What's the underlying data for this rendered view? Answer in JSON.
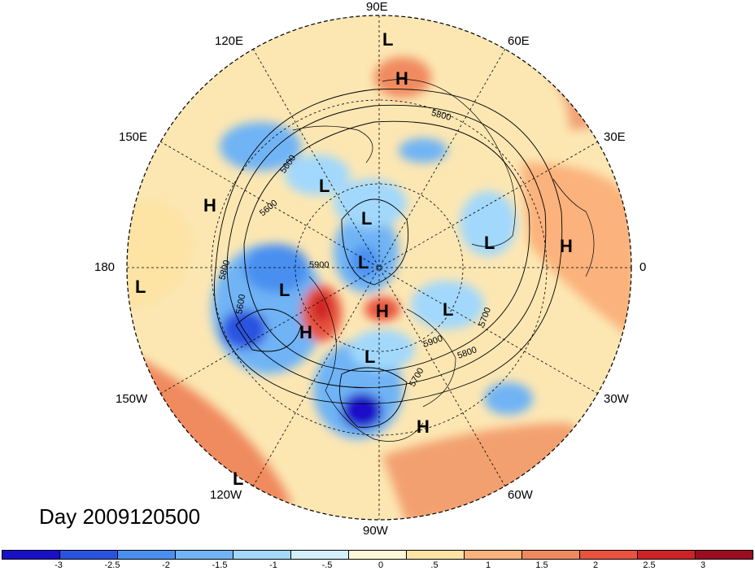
{
  "title": "Day 2009120500",
  "longitude_labels": {
    "lon_90e": "90E",
    "lon_60e": "60E",
    "lon_30e": "30E",
    "lon_0": "0",
    "lon_30w": "30W",
    "lon_60w": "60W",
    "lon_90w": "90W",
    "lon_120w": "120W",
    "lon_150w": "150W",
    "lon_180": "180",
    "lon_150e": "150E",
    "lon_120e": "120E"
  },
  "pressure_centers": [
    {
      "type": "L",
      "label": "L"
    },
    {
      "type": "H",
      "label": "H"
    },
    {
      "type": "L",
      "label": "L"
    },
    {
      "type": "L",
      "label": "L"
    },
    {
      "type": "H",
      "label": "H"
    },
    {
      "type": "L",
      "label": "L"
    },
    {
      "type": "L",
      "label": "L"
    },
    {
      "type": "H",
      "label": "H"
    },
    {
      "type": "L",
      "label": "L"
    },
    {
      "type": "L",
      "label": "L"
    },
    {
      "type": "L",
      "label": "L"
    },
    {
      "type": "H",
      "label": "H"
    },
    {
      "type": "H",
      "label": "H"
    },
    {
      "type": "L",
      "label": "L"
    },
    {
      "type": "H",
      "label": "H"
    },
    {
      "type": "L",
      "label": "L"
    }
  ],
  "contour_labels": [
    "5800",
    "5600",
    "5600",
    "5900",
    "5800",
    "5600",
    "5700",
    "5700",
    "5800",
    "5900"
  ],
  "colorbar": {
    "colors": [
      "#1a10c8",
      "#2a52e0",
      "#4a8ff0",
      "#70b4f5",
      "#a2d8fb",
      "#d4f0fb",
      "#fef8d8",
      "#fde3a4",
      "#fbb27c",
      "#f08a5e",
      "#e8523e",
      "#cd2327",
      "#9c0d22"
    ],
    "ticks": [
      "-3",
      "-2.5",
      "-2",
      "-1.5",
      "-1",
      "-.5",
      "0",
      ".5",
      "1",
      "1.5",
      "2",
      "2.5",
      "3"
    ]
  }
}
